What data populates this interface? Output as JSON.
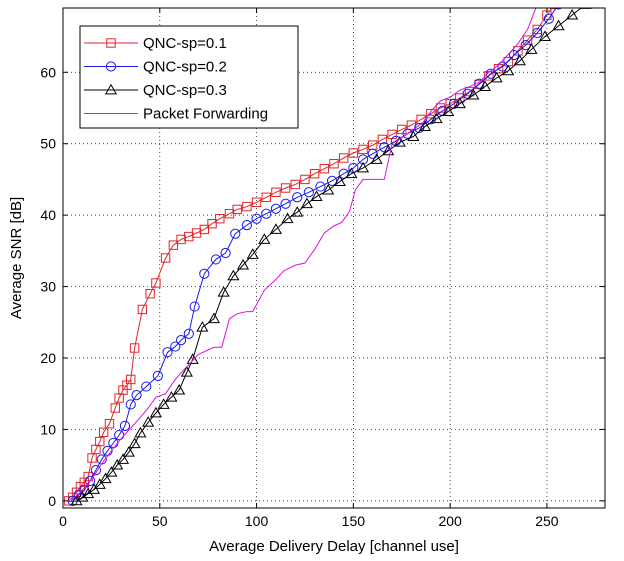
{
  "chart_data": {
    "type": "line",
    "title": "",
    "xlabel": "Average Delivery Delay [channel use]",
    "ylabel": "Average SNR [dB]",
    "xlim": [
      0,
      280
    ],
    "ylim": [
      -1,
      69
    ],
    "xticks": [
      0,
      50,
      100,
      150,
      200,
      250
    ],
    "yticks": [
      0,
      10,
      20,
      30,
      40,
      50,
      60
    ],
    "grid": true,
    "legend_position": "top-left",
    "series": [
      {
        "name": "QNC-sp=0.1",
        "color": "#e0262b",
        "marker": "square",
        "points": [
          [
            3,
            0
          ],
          [
            5,
            0.5
          ],
          [
            7,
            1.2
          ],
          [
            9,
            2
          ],
          [
            11,
            2.6
          ],
          [
            13,
            3.4
          ],
          [
            15,
            6
          ],
          [
            17,
            7.2
          ],
          [
            19,
            8.3
          ],
          [
            21,
            9.6
          ],
          [
            24,
            10.8
          ],
          [
            27,
            13
          ],
          [
            29,
            14.4
          ],
          [
            31,
            15.5
          ],
          [
            33,
            16.2
          ],
          [
            35,
            17
          ],
          [
            37,
            21.4
          ],
          [
            41,
            26.8
          ],
          [
            45,
            29
          ],
          [
            48,
            30.5
          ],
          [
            53,
            34
          ],
          [
            57,
            35.8
          ],
          [
            61,
            36.6
          ],
          [
            65,
            37
          ],
          [
            69,
            37.5
          ],
          [
            73,
            38
          ],
          [
            77,
            38.8
          ],
          [
            81,
            39.5
          ],
          [
            86,
            40.2
          ],
          [
            90,
            40.8
          ],
          [
            95,
            41.2
          ],
          [
            100,
            41.8
          ],
          [
            105,
            42.5
          ],
          [
            110,
            43.2
          ],
          [
            115,
            43.8
          ],
          [
            120,
            44.3
          ],
          [
            125,
            45
          ],
          [
            130,
            45.8
          ],
          [
            135,
            46.5
          ],
          [
            140,
            47.2
          ],
          [
            145,
            48
          ],
          [
            150,
            48.7
          ],
          [
            155,
            49.2
          ],
          [
            160,
            49.8
          ],
          [
            165,
            50.6
          ],
          [
            170,
            51.3
          ],
          [
            175,
            52
          ],
          [
            180,
            52.6
          ],
          [
            185,
            53.4
          ],
          [
            190,
            54.2
          ],
          [
            195,
            55
          ],
          [
            200,
            55.6
          ],
          [
            205,
            56.4
          ],
          [
            210,
            57.3
          ],
          [
            215,
            58.3
          ],
          [
            220,
            59.5
          ],
          [
            225,
            60.5
          ],
          [
            230,
            61.5
          ],
          [
            235,
            63
          ],
          [
            240,
            64.5
          ],
          [
            245,
            66
          ],
          [
            250,
            68
          ],
          [
            254,
            69.5
          ]
        ]
      },
      {
        "name": "QNC-sp=0.2",
        "color": "#1a1af0",
        "marker": "circle",
        "points": [
          [
            5,
            0
          ],
          [
            8,
            0.8
          ],
          [
            11,
            1.5
          ],
          [
            14,
            2.8
          ],
          [
            17,
            4.3
          ],
          [
            20,
            5.8
          ],
          [
            23,
            7
          ],
          [
            26,
            8.1
          ],
          [
            29,
            9.2
          ],
          [
            32,
            10.5
          ],
          [
            35,
            13.5
          ],
          [
            38,
            14.8
          ],
          [
            43,
            16
          ],
          [
            49,
            17.5
          ],
          [
            54,
            20.8
          ],
          [
            58,
            21.6
          ],
          [
            61,
            22.5
          ],
          [
            65,
            23.4
          ],
          [
            68,
            27.2
          ],
          [
            73,
            31.8
          ],
          [
            79,
            33.8
          ],
          [
            84,
            34.7
          ],
          [
            89,
            37.4
          ],
          [
            95,
            38.6
          ],
          [
            100,
            39.5
          ],
          [
            105,
            40.2
          ],
          [
            110,
            40.9
          ],
          [
            115,
            41.6
          ],
          [
            121,
            42.5
          ],
          [
            127,
            43.2
          ],
          [
            133,
            44
          ],
          [
            139,
            44.8
          ],
          [
            145,
            45.8
          ],
          [
            150,
            46.6
          ],
          [
            155,
            47.8
          ],
          [
            160,
            48.6
          ],
          [
            166,
            49.5
          ],
          [
            172,
            50.4
          ],
          [
            178,
            51.4
          ],
          [
            184,
            52.2
          ],
          [
            190,
            53.4
          ],
          [
            196,
            54.6
          ],
          [
            202,
            55.6
          ],
          [
            209,
            57
          ],
          [
            215,
            58.4
          ],
          [
            221,
            59.8
          ],
          [
            227,
            60.8
          ],
          [
            233,
            62.4
          ],
          [
            239,
            63.8
          ],
          [
            245,
            65.5
          ],
          [
            251,
            67.5
          ],
          [
            256,
            69.5
          ]
        ]
      },
      {
        "name": "QNC-sp=0.3",
        "color": "#000000",
        "marker": "triangle",
        "points": [
          [
            7,
            0
          ],
          [
            10,
            0.5
          ],
          [
            13,
            1
          ],
          [
            16,
            1.6
          ],
          [
            19,
            2.3
          ],
          [
            22,
            3.1
          ],
          [
            25,
            4
          ],
          [
            28,
            5
          ],
          [
            31,
            5.8
          ],
          [
            34,
            6.8
          ],
          [
            37,
            8
          ],
          [
            40,
            9.5
          ],
          [
            44,
            11
          ],
          [
            48,
            12.3
          ],
          [
            52,
            13.5
          ],
          [
            56,
            14.5
          ],
          [
            60,
            15.5
          ],
          [
            64,
            18
          ],
          [
            67,
            19.8
          ],
          [
            72,
            24.3
          ],
          [
            78,
            25.5
          ],
          [
            83,
            29.2
          ],
          [
            88,
            31.5
          ],
          [
            93,
            33
          ],
          [
            98,
            34.5
          ],
          [
            104,
            36.6
          ],
          [
            110,
            38
          ],
          [
            116,
            39.5
          ],
          [
            121,
            40.4
          ],
          [
            126,
            41.6
          ],
          [
            131,
            42.6
          ],
          [
            137,
            43.5
          ],
          [
            143,
            44.7
          ],
          [
            149,
            45.8
          ],
          [
            155,
            46.6
          ],
          [
            162,
            47.8
          ],
          [
            168,
            49
          ],
          [
            174,
            50.2
          ],
          [
            181,
            51
          ],
          [
            187,
            52.4
          ],
          [
            193,
            53.5
          ],
          [
            199,
            54.5
          ],
          [
            205,
            55.6
          ],
          [
            212,
            56.8
          ],
          [
            218,
            58
          ],
          [
            224,
            59.2
          ],
          [
            230,
            60.2
          ],
          [
            236,
            61.6
          ],
          [
            242,
            63.2
          ],
          [
            249,
            65
          ],
          [
            256,
            66.5
          ],
          [
            263,
            68
          ],
          [
            270,
            69.5
          ]
        ]
      },
      {
        "name": "Packet Forwarding",
        "color": "#e010e0",
        "marker": "none",
        "points": [
          [
            4,
            0
          ],
          [
            10,
            1.5
          ],
          [
            16,
            3.5
          ],
          [
            20,
            5.2
          ],
          [
            25,
            7
          ],
          [
            30,
            8.7
          ],
          [
            35,
            10.2
          ],
          [
            40,
            11.7
          ],
          [
            44,
            13
          ],
          [
            48,
            14.5
          ],
          [
            53,
            15
          ],
          [
            58,
            17
          ],
          [
            63,
            18.5
          ],
          [
            70,
            20.5
          ],
          [
            78,
            21.5
          ],
          [
            82,
            21.5
          ],
          [
            86,
            25.5
          ],
          [
            90,
            26.2
          ],
          [
            95,
            26.5
          ],
          [
            98,
            26.5
          ],
          [
            104,
            29.5
          ],
          [
            110,
            31
          ],
          [
            114,
            32.2
          ],
          [
            120,
            33
          ],
          [
            125,
            33.3
          ],
          [
            130,
            35.2
          ],
          [
            135,
            37.5
          ],
          [
            140,
            38.5
          ],
          [
            144,
            39
          ],
          [
            148,
            40.5
          ],
          [
            151,
            43.5
          ],
          [
            155,
            45
          ],
          [
            160,
            45
          ],
          [
            166,
            45
          ],
          [
            170,
            50
          ],
          [
            176,
            51
          ],
          [
            181,
            52
          ],
          [
            186,
            53
          ],
          [
            190,
            54.5
          ],
          [
            195,
            56
          ],
          [
            200,
            56.5
          ],
          [
            205,
            57.5
          ],
          [
            210,
            58
          ],
          [
            215,
            58.6
          ],
          [
            220,
            60
          ],
          [
            225,
            61
          ],
          [
            230,
            62.5
          ],
          [
            235,
            64
          ],
          [
            240,
            66
          ],
          [
            245,
            69.5
          ]
        ]
      }
    ]
  }
}
